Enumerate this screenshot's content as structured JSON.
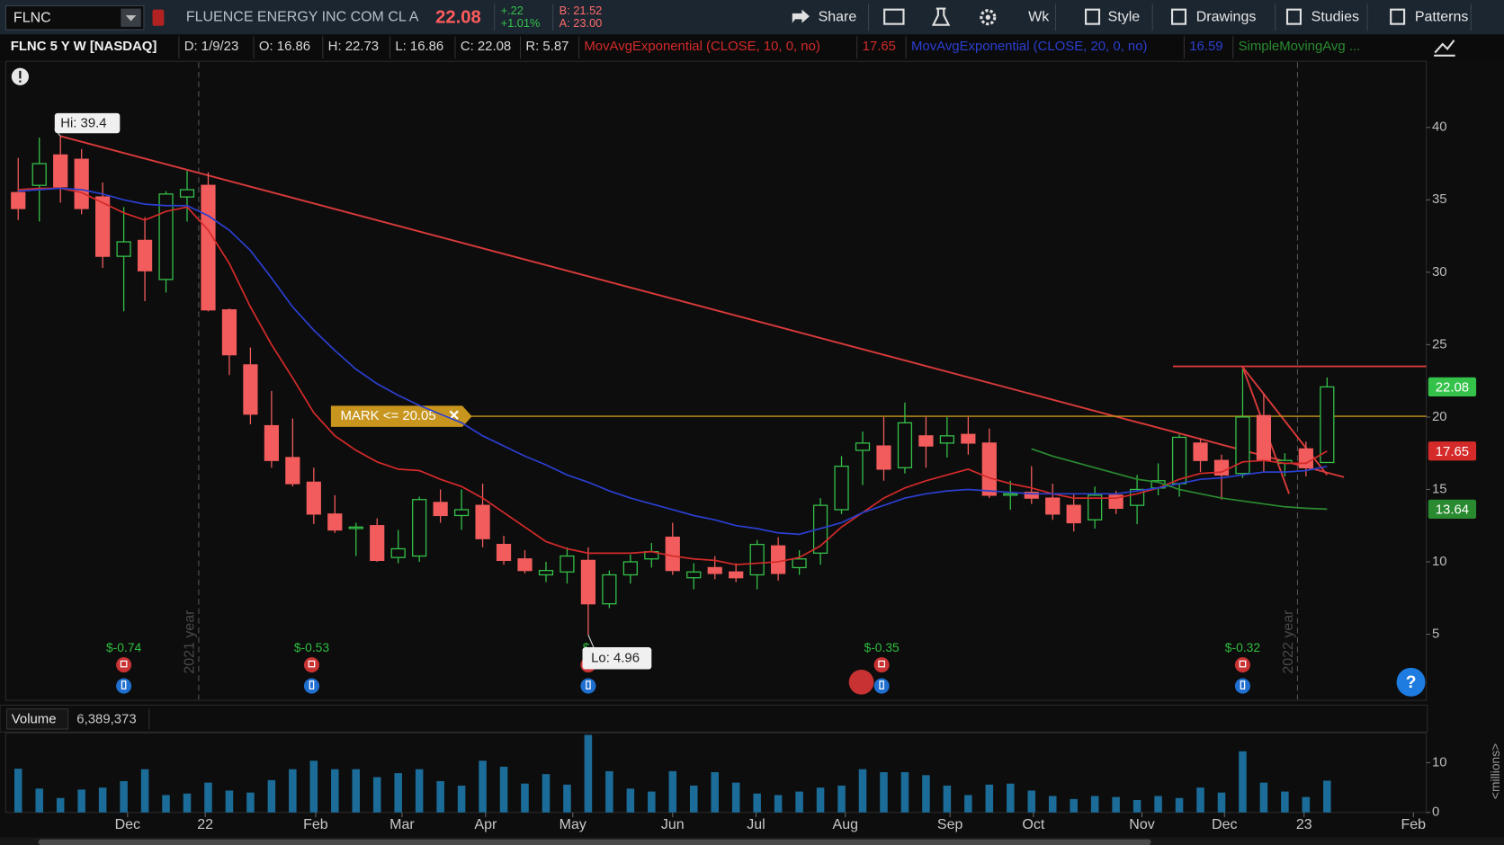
{
  "toolbar": {
    "symbol": "FLNC",
    "description": "FLUENCE ENERGY INC COM CL A",
    "change": "+.22",
    "change_pct": "+1.01%",
    "bid": "B: 21.52",
    "ask": "A: 23.00",
    "buttons": [
      "Share",
      "Wk",
      "Style",
      "Drawings",
      "Studies",
      "Patterns"
    ]
  },
  "info_bar": {
    "title": "FLNC 5 Y W [NASDAQ]",
    "fields": [
      "D: 1/9/23",
      "O: 16.86",
      "H: 22.73",
      "L: 16.86",
      "C: 22.08",
      "R: 5.87"
    ]
  },
  "chart_data": [
    {
      "type": "candlestick",
      "up_color": "#35c24a",
      "down_color": "#f25c5c",
      "xlim": [
        -0.545,
        66.7
      ],
      "ylim": [
        0.5,
        44.5
      ],
      "yticks": [
        5,
        10,
        15,
        20,
        25,
        30,
        35,
        40
      ],
      "grid": false,
      "open": [
        35.5,
        36.0,
        38.1,
        37.8,
        35.2,
        31.1,
        32.2,
        29.5,
        35.2,
        36.0,
        27.4,
        23.6,
        19.4,
        17.2,
        15.5,
        13.3,
        12.3,
        12.5,
        10.3,
        10.4,
        14.1,
        13.2,
        13.9,
        11.2,
        10.2,
        9.1,
        9.3,
        10.1,
        7.1,
        9.1,
        10.2,
        11.7,
        8.9,
        9.6,
        9.3,
        9.1,
        11.1,
        9.6,
        10.6,
        13.6,
        17.7,
        18.0,
        16.5,
        18.7,
        18.2,
        18.8,
        18.2,
        14.6,
        14.8,
        14.4,
        13.9,
        12.9,
        14.6,
        13.9,
        15.1,
        15.4,
        18.2,
        17.0,
        16.1,
        20.1,
        16.8,
        17.8,
        16.86
      ],
      "high": [
        37.9,
        39.3,
        39.4,
        38.5,
        36.2,
        34.5,
        33.8,
        35.6,
        37.0,
        36.9,
        27.5,
        24.8,
        21.8,
        19.9,
        16.5,
        14.6,
        12.7,
        13.0,
        12.2,
        14.5,
        15.0,
        15.0,
        15.4,
        11.8,
        10.8,
        10.0,
        11.0,
        11.0,
        9.4,
        10.5,
        11.3,
        12.7,
        9.9,
        10.4,
        9.9,
        11.5,
        11.7,
        10.8,
        14.4,
        17.3,
        19.0,
        20.0,
        21.0,
        20.0,
        20.0,
        20.0,
        19.2,
        15.6,
        16.6,
        15.4,
        14.7,
        15.2,
        14.9,
        16.0,
        16.8,
        18.8,
        18.5,
        17.4,
        23.3,
        21.6,
        17.5,
        18.3,
        22.73
      ],
      "low": [
        33.6,
        33.5,
        34.8,
        34.0,
        30.3,
        27.3,
        28.0,
        28.6,
        33.5,
        27.3,
        22.9,
        19.5,
        16.5,
        15.2,
        12.6,
        12.0,
        10.4,
        10.0,
        9.9,
        10.0,
        12.7,
        12.2,
        11.0,
        9.8,
        9.2,
        8.6,
        8.5,
        4.96,
        6.8,
        8.5,
        9.6,
        9.1,
        8.1,
        8.8,
        8.6,
        8.1,
        8.7,
        9.1,
        9.8,
        13.3,
        15.3,
        15.6,
        16.1,
        16.5,
        17.2,
        17.4,
        14.4,
        13.6,
        14.0,
        12.9,
        12.1,
        12.3,
        13.3,
        12.6,
        14.6,
        14.5,
        16.2,
        14.3,
        15.8,
        16.2,
        15.9,
        15.9,
        16.86
      ],
      "close": [
        34.4,
        37.5,
        35.9,
        34.4,
        31.1,
        32.1,
        30.1,
        35.4,
        35.7,
        27.4,
        24.3,
        20.2,
        17.0,
        15.4,
        13.3,
        12.2,
        12.4,
        10.1,
        10.9,
        14.3,
        13.2,
        13.6,
        11.6,
        10.1,
        9.4,
        9.4,
        10.4,
        7.1,
        9.1,
        10.0,
        10.7,
        9.4,
        9.3,
        9.2,
        8.9,
        11.2,
        9.2,
        10.2,
        13.9,
        16.6,
        18.2,
        16.4,
        19.6,
        18.0,
        18.7,
        18.2,
        14.6,
        14.7,
        14.4,
        13.3,
        12.7,
        14.6,
        13.7,
        15.0,
        15.6,
        18.6,
        17.0,
        16.0,
        20.0,
        17.0,
        17.0,
        16.5,
        22.08
      ],
      "lines": [
        {
          "name": "MovAvgExponential (CLOSE, 10, 0, no)",
          "color": "#d42a2a",
          "show_last": true,
          "values": [
            35.7,
            35.8,
            35.8,
            35.5,
            34.8,
            34.1,
            33.6,
            34.2,
            34.5,
            32.9,
            30.6,
            27.6,
            25.0,
            22.7,
            20.3,
            18.7,
            17.7,
            16.9,
            16.4,
            16.3,
            15.7,
            15.2,
            14.4,
            13.4,
            12.4,
            11.4,
            10.9,
            10.6,
            10.6,
            10.6,
            10.7,
            10.4,
            10.2,
            10.1,
            9.8,
            9.9,
            10.0,
            10.3,
            11.1,
            12.4,
            13.4,
            14.4,
            15.1,
            15.6,
            16.0,
            16.4,
            15.8,
            15.4,
            15.1,
            14.7,
            14.4,
            14.4,
            14.4,
            14.7,
            15.1,
            15.7,
            16.1,
            16.2,
            16.9,
            17.0,
            16.8,
            16.8,
            17.65
          ]
        },
        {
          "name": "MovAvgExponential (CLOSE, 20, 0, no)",
          "color": "#2b3fd0",
          "show_last": false,
          "values": [
            35.6,
            35.7,
            35.8,
            35.7,
            35.4,
            35.0,
            34.7,
            34.6,
            34.6,
            33.9,
            32.9,
            31.5,
            29.6,
            27.6,
            26.0,
            24.6,
            23.3,
            22.3,
            21.5,
            20.8,
            20.2,
            19.6,
            18.7,
            18.0,
            17.3,
            16.7,
            16.0,
            15.5,
            14.9,
            14.4,
            14.0,
            13.6,
            13.2,
            12.9,
            12.5,
            12.3,
            12.0,
            11.9,
            12.3,
            12.7,
            13.4,
            13.9,
            14.4,
            14.7,
            14.9,
            15.0,
            14.9,
            14.8,
            14.7,
            14.7,
            14.7,
            14.7,
            14.7,
            14.9,
            15.1,
            15.4,
            15.7,
            15.8,
            16.0,
            16.2,
            16.2,
            16.3,
            16.59
          ]
        },
        {
          "name": "SimpleMovingAvg ...",
          "color": "#2a8a30",
          "show_last": true,
          "values": [
            null,
            null,
            null,
            null,
            null,
            null,
            null,
            null,
            null,
            null,
            null,
            null,
            null,
            null,
            null,
            null,
            null,
            null,
            null,
            null,
            null,
            null,
            null,
            null,
            null,
            null,
            null,
            null,
            null,
            null,
            null,
            null,
            null,
            null,
            null,
            null,
            null,
            null,
            null,
            null,
            null,
            null,
            null,
            null,
            null,
            null,
            null,
            null,
            17.8,
            17.3,
            16.9,
            16.5,
            16.1,
            15.7,
            15.5,
            15.0,
            14.7,
            14.4,
            14.2,
            14.0,
            13.8,
            13.7,
            13.64
          ]
        }
      ],
      "mark_line": {
        "label": "MARK <= 20.05",
        "value": 20.05,
        "color": "#c8961e"
      },
      "trendlines": [
        {
          "x": [
            2,
            62.8
          ],
          "y": [
            39.4,
            15.85
          ],
          "color": "#d93a3a"
        },
        {
          "x": [
            54.7,
            66.7
          ],
          "y": [
            23.5,
            23.5
          ],
          "color": "#d93a3a"
        },
        {
          "x": [
            58.0,
            60.2
          ],
          "y": [
            23.45,
            14.7
          ],
          "color": "#d93a3a"
        },
        {
          "x": [
            58.0,
            62.0
          ],
          "y": [
            23.45,
            16.0
          ],
          "color": "#d93a3a"
        }
      ],
      "annotations": [
        "Hi: 39.4",
        "Lo: 4.96"
      ],
      "earnings": [
        {
          "x": 5,
          "label": "$-0.74"
        },
        {
          "x": 13.9,
          "label": "$-0.53"
        },
        {
          "x": 27,
          "label": "$-"
        },
        {
          "x": 40.9,
          "label": "$-0.35"
        },
        {
          "x": 58,
          "label": "$-0.32"
        }
      ],
      "year_markers": [
        {
          "x": 8.55,
          "label": "2021 year"
        },
        {
          "x": 60.6,
          "label": "2022 year"
        }
      ]
    },
    {
      "type": "bar",
      "title": "Volume",
      "y_label": "<millions>",
      "color": "#1b6c98",
      "xlim": [
        -0.545,
        66.7
      ],
      "ylim": [
        0,
        16
      ],
      "yticks": [
        0,
        10
      ],
      "xticks": [
        {
          "value": 5.18,
          "label": "Dec"
        },
        {
          "value": 8.86,
          "label": "22"
        },
        {
          "value": 14.09,
          "label": "Feb"
        },
        {
          "value": 18.18,
          "label": "Mar"
        },
        {
          "value": 22.14,
          "label": "Apr"
        },
        {
          "value": 26.27,
          "label": "May"
        },
        {
          "value": 31.0,
          "label": "Jun"
        },
        {
          "value": 34.95,
          "label": "Jul"
        },
        {
          "value": 39.18,
          "label": "Aug"
        },
        {
          "value": 44.14,
          "label": "Sep"
        },
        {
          "value": 48.09,
          "label": "Oct"
        },
        {
          "value": 53.23,
          "label": "Nov"
        },
        {
          "value": 57.14,
          "label": "Dec"
        },
        {
          "value": 60.91,
          "label": "23"
        },
        {
          "value": 66.09,
          "label": "Feb"
        }
      ],
      "values": [
        8.8,
        4.8,
        2.9,
        4.6,
        5.0,
        6.3,
        8.7,
        3.5,
        3.8,
        6.0,
        4.4,
        4.0,
        6.5,
        8.7,
        10.4,
        8.7,
        8.7,
        7.1,
        7.9,
        8.7,
        6.3,
        5.4,
        10.4,
        9.2,
        5.8,
        7.7,
        5.6,
        15.6,
        8.3,
        4.8,
        4.2,
        8.3,
        5.4,
        8.1,
        6.0,
        3.8,
        3.5,
        4.2,
        5.0,
        5.4,
        8.7,
        8.1,
        8.1,
        7.5,
        5.4,
        3.5,
        5.6,
        5.8,
        4.4,
        3.3,
        2.7,
        3.3,
        3.1,
        2.5,
        3.3,
        2.9,
        5.0,
        4.0,
        12.3,
        6.0,
        4.2,
        3.1,
        6.389373
      ],
      "value_labels": [
        null,
        null,
        null,
        null,
        null,
        null,
        null,
        null,
        null,
        null,
        null,
        null,
        null,
        null,
        null,
        null,
        null,
        null,
        null,
        null,
        null,
        null,
        null,
        null,
        null,
        null,
        null,
        null,
        null,
        null,
        null,
        null,
        null,
        null,
        null,
        null,
        null,
        null,
        null,
        null,
        null,
        null,
        null,
        null,
        null,
        null,
        null,
        null,
        null,
        null,
        null,
        null,
        null,
        null,
        null,
        null,
        null,
        null,
        null,
        null,
        null,
        null,
        "6,389,373"
      ]
    }
  ]
}
